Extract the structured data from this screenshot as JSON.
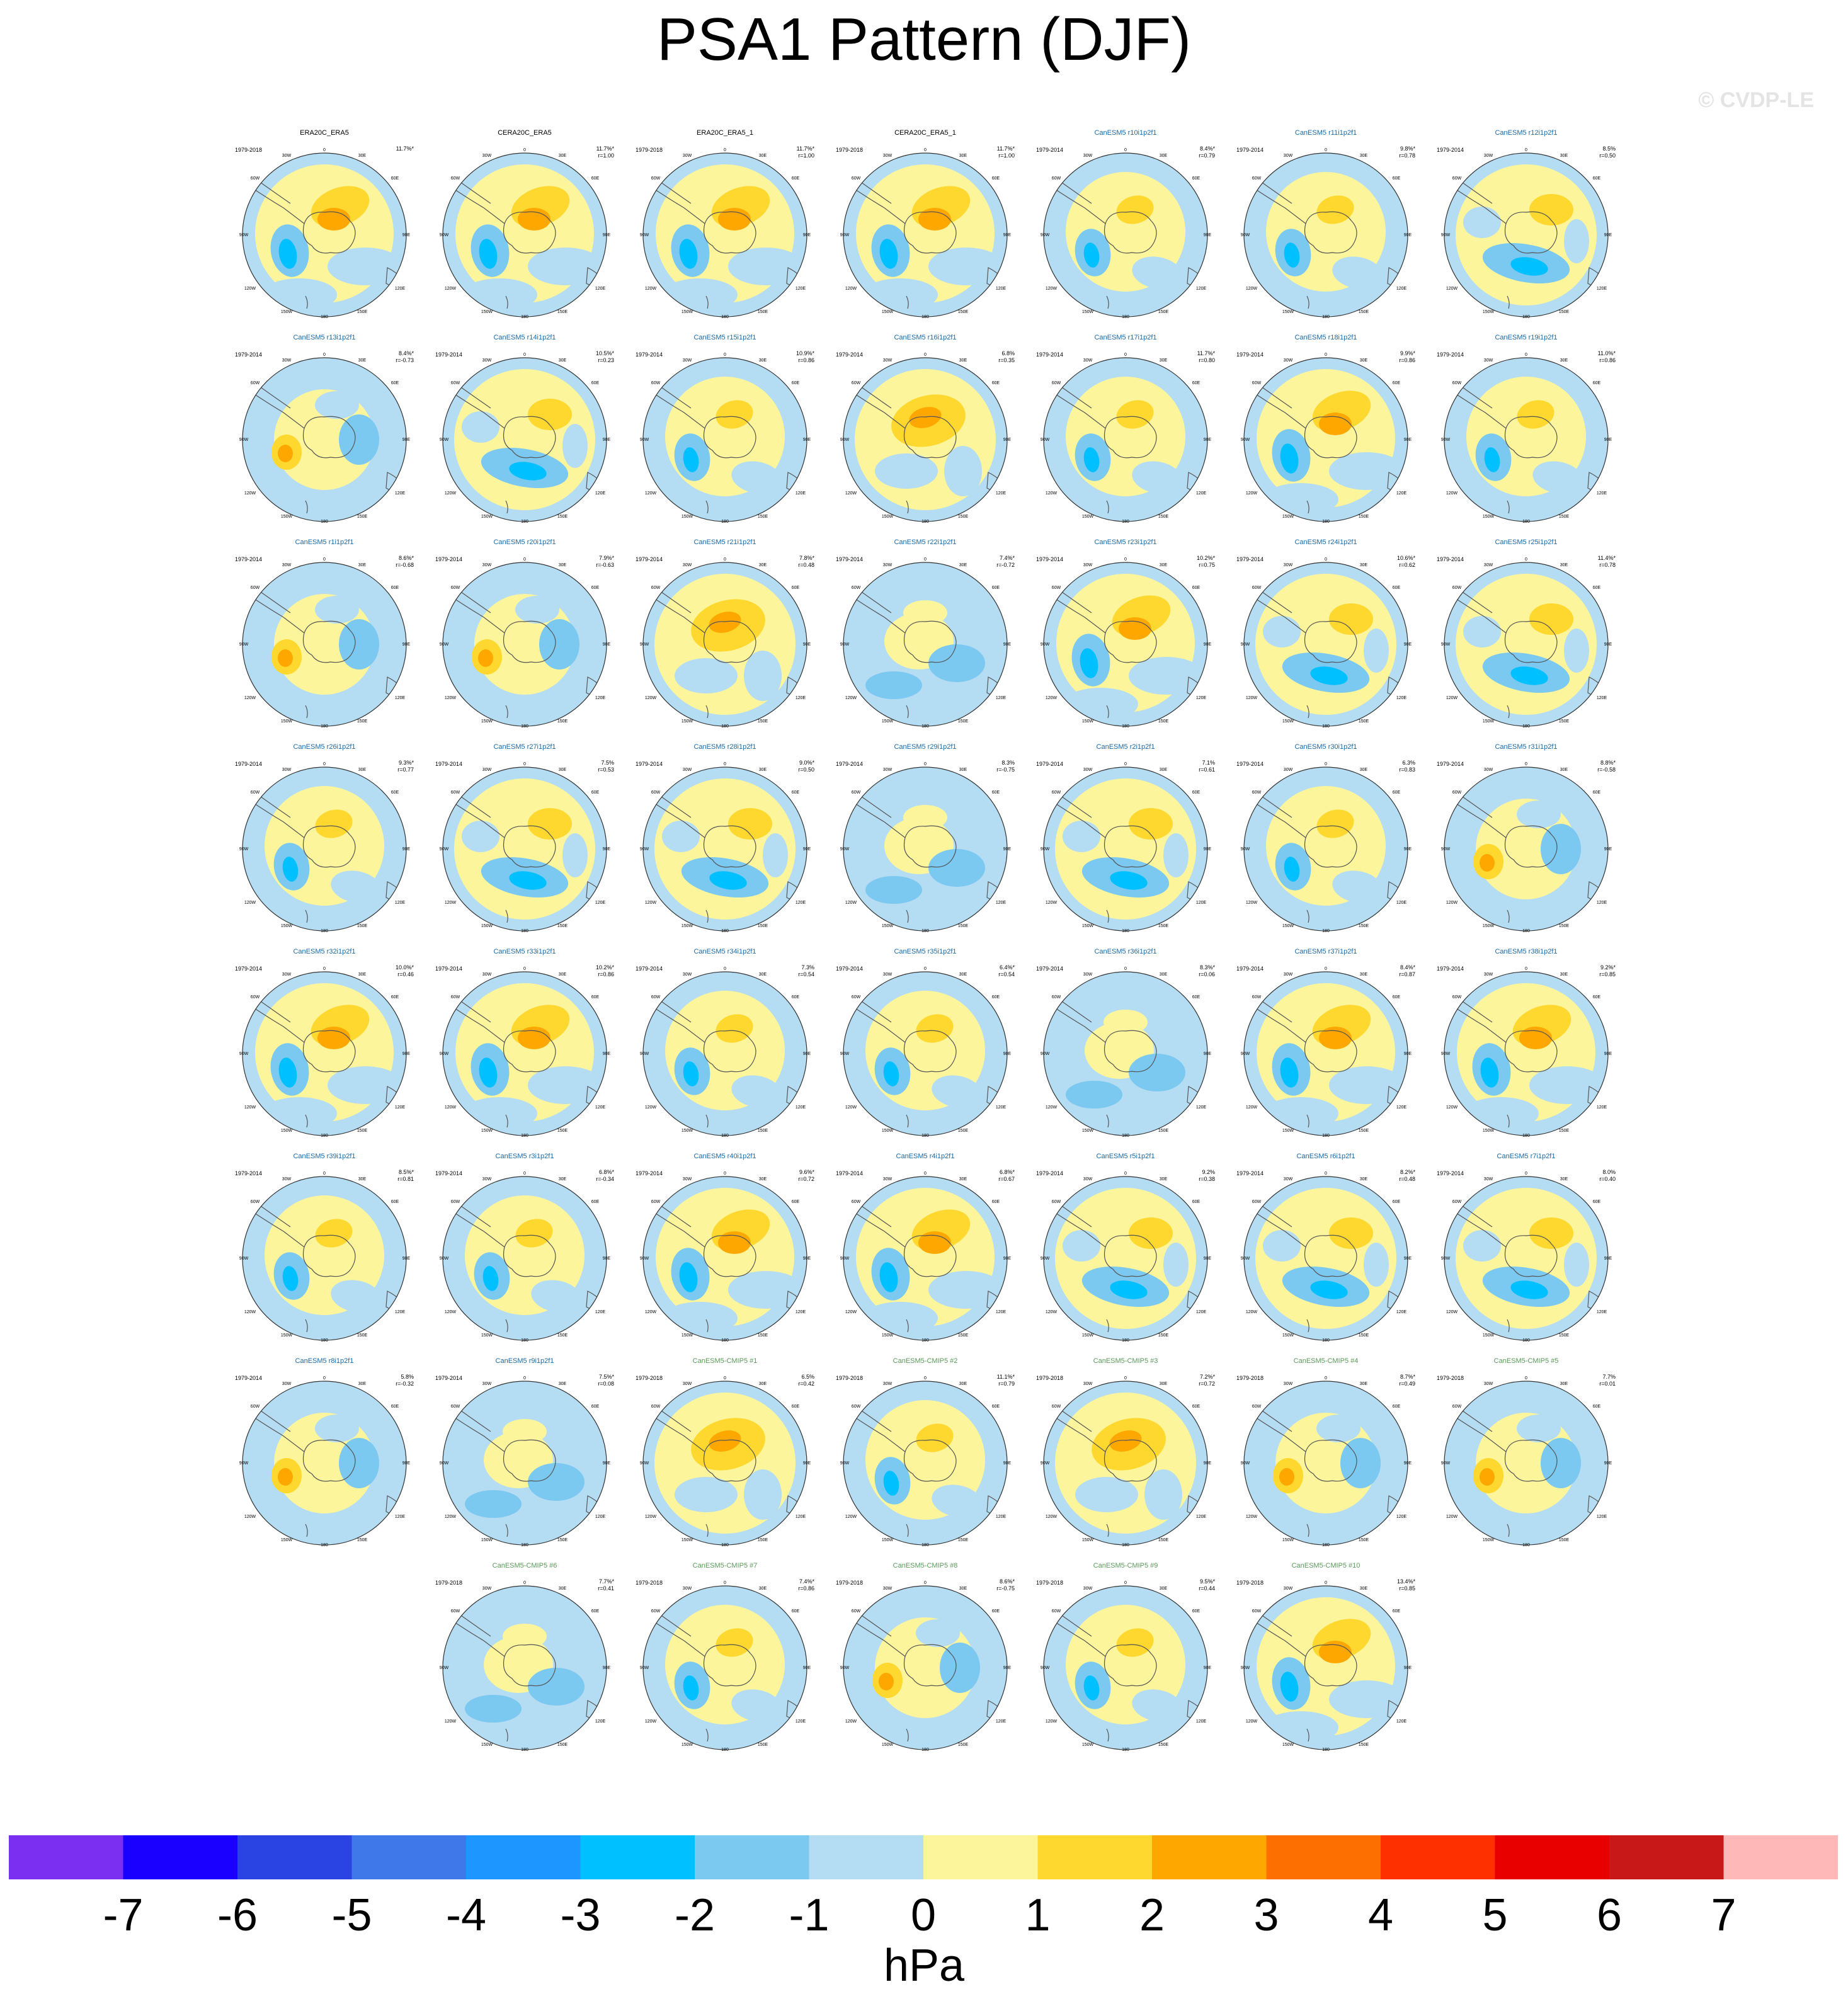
{
  "title": "PSA1 Pattern (DJF)",
  "watermark": "© CVDP-LE",
  "unit": "hPa",
  "colorbar": {
    "colors": [
      "#7b2ff0",
      "#1a00ff",
      "#2a44e4",
      "#3f78e8",
      "#1e96ff",
      "#00c0ff",
      "#7bc8f0",
      "#b4dcf2",
      "#fcf59c",
      "#fed82e",
      "#fea700",
      "#fd6f00",
      "#ff3000",
      "#e80000",
      "#c81818",
      "#ffb8b8"
    ],
    "ticks": [
      "-7",
      "-6",
      "-5",
      "-4",
      "-3",
      "-2",
      "-1",
      "0",
      "1",
      "2",
      "3",
      "4",
      "5",
      "6",
      "7"
    ]
  },
  "panels": [
    {
      "title": "ERA20C_ERA5",
      "title_color": "#000000",
      "years": "1979-2018",
      "stat1": "11.7%*",
      "stat2": "",
      "pattern": "obs"
    },
    {
      "title": "CERA20C_ERA5",
      "title_color": "#000000",
      "years": "",
      "stat1": "11.7%*",
      "stat2": "r=1.00",
      "pattern": "obs"
    },
    {
      "title": "ERA20C_ERA5_1",
      "title_color": "#000000",
      "years": "1979-2018",
      "stat1": "11.7%*",
      "stat2": "r=1.00",
      "pattern": "obs"
    },
    {
      "title": "CERA20C_ERA5_1",
      "title_color": "#000000",
      "years": "1979-2018",
      "stat1": "11.7%*",
      "stat2": "r=1.00",
      "pattern": "obs"
    },
    {
      "title": "CanESM5 r10i1p2f1",
      "title_color": "#1a6aa8",
      "years": "1979-2014",
      "stat1": "8.4%*",
      "stat2": "r=0.79",
      "pattern": "neg_w"
    },
    {
      "title": "CanESM5 r11i1p2f1",
      "title_color": "#1a6aa8",
      "years": "1979-2014",
      "stat1": "9.8%*",
      "stat2": "r=0.78",
      "pattern": "neg_w"
    },
    {
      "title": "CanESM5 r12i1p2f1",
      "title_color": "#1a6aa8",
      "years": "1979-2014",
      "stat1": "8.5%",
      "stat2": "r=0.50",
      "pattern": "neg_s"
    },
    {
      "title": "CanESM5 r13i1p2f1",
      "title_color": "#1a6aa8",
      "years": "1979-2014",
      "stat1": "8.4%*",
      "stat2": "r=-0.73",
      "pattern": "pos_w"
    },
    {
      "title": "CanESM5 r14i1p2f1",
      "title_color": "#1a6aa8",
      "years": "1979-2014",
      "stat1": "10.5%*",
      "stat2": "r=0.23",
      "pattern": "neg_s"
    },
    {
      "title": "CanESM5 r15i1p2f1",
      "title_color": "#1a6aa8",
      "years": "1979-2014",
      "stat1": "10.9%*",
      "stat2": "r=0.86",
      "pattern": "neg_w"
    },
    {
      "title": "CanESM5 r16i1p2f1",
      "title_color": "#1a6aa8",
      "years": "1979-2014",
      "stat1": "6.8%",
      "stat2": "r=0.35",
      "pattern": "pos_c"
    },
    {
      "title": "CanESM5 r17i1p2f1",
      "title_color": "#1a6aa8",
      "years": "1979-2014",
      "stat1": "11.7%*",
      "stat2": "r=0.80",
      "pattern": "neg_w"
    },
    {
      "title": "CanESM5 r18i1p2f1",
      "title_color": "#1a6aa8",
      "years": "1979-2014",
      "stat1": "9.9%*",
      "stat2": "r=0.86",
      "pattern": "obs"
    },
    {
      "title": "CanESM5 r19i1p2f1",
      "title_color": "#1a6aa8",
      "years": "1979-2014",
      "stat1": "11.0%*",
      "stat2": "r=0.86",
      "pattern": "neg_w"
    },
    {
      "title": "CanESM5 r1i1p2f1",
      "title_color": "#1a6aa8",
      "years": "1979-2014",
      "stat1": "8.6%*",
      "stat2": "r=-0.68",
      "pattern": "pos_w"
    },
    {
      "title": "CanESM5 r20i1p2f1",
      "title_color": "#1a6aa8",
      "years": "1979-2014",
      "stat1": "7.9%*",
      "stat2": "r=-0.63",
      "pattern": "pos_w"
    },
    {
      "title": "CanESM5 r21i1p2f1",
      "title_color": "#1a6aa8",
      "years": "1979-2014",
      "stat1": "7.8%*",
      "stat2": "r=0.48",
      "pattern": "pos_c"
    },
    {
      "title": "CanESM5 r22i1p2f1",
      "title_color": "#1a6aa8",
      "years": "1979-2014",
      "stat1": "7.4%*",
      "stat2": "r=-0.72",
      "pattern": "blue"
    },
    {
      "title": "CanESM5 r23i1p2f1",
      "title_color": "#1a6aa8",
      "years": "1979-2014",
      "stat1": "10.2%*",
      "stat2": "r=0.75",
      "pattern": "obs"
    },
    {
      "title": "CanESM5 r24i1p2f1",
      "title_color": "#1a6aa8",
      "years": "1979-2014",
      "stat1": "10.6%*",
      "stat2": "r=0.62",
      "pattern": "neg_s"
    },
    {
      "title": "CanESM5 r25i1p2f1",
      "title_color": "#1a6aa8",
      "years": "1979-2014",
      "stat1": "11.4%*",
      "stat2": "r=0.78",
      "pattern": "neg_s"
    },
    {
      "title": "CanESM5 r26i1p2f1",
      "title_color": "#1a6aa8",
      "years": "1979-2014",
      "stat1": "9.3%*",
      "stat2": "r=0.77",
      "pattern": "neg_w"
    },
    {
      "title": "CanESM5 r27i1p2f1",
      "title_color": "#1a6aa8",
      "years": "1979-2014",
      "stat1": "7.5%",
      "stat2": "r=0.53",
      "pattern": "neg_s"
    },
    {
      "title": "CanESM5 r28i1p2f1",
      "title_color": "#1a6aa8",
      "years": "1979-2014",
      "stat1": "9.0%*",
      "stat2": "r=0.50",
      "pattern": "neg_s"
    },
    {
      "title": "CanESM5 r29i1p2f1",
      "title_color": "#1a6aa8",
      "years": "1979-2014",
      "stat1": "8.3%",
      "stat2": "r=-0.75",
      "pattern": "blue"
    },
    {
      "title": "CanESM5 r2i1p2f1",
      "title_color": "#1a6aa8",
      "years": "1979-2014",
      "stat1": "7.1%",
      "stat2": "r=0.61",
      "pattern": "neg_s"
    },
    {
      "title": "CanESM5 r30i1p2f1",
      "title_color": "#1a6aa8",
      "years": "1979-2014",
      "stat1": "6.3%",
      "stat2": "r=0.83",
      "pattern": "neg_w"
    },
    {
      "title": "CanESM5 r31i1p2f1",
      "title_color": "#1a6aa8",
      "years": "1979-2014",
      "stat1": "8.8%*",
      "stat2": "r=-0.58",
      "pattern": "pos_w"
    },
    {
      "title": "CanESM5 r32i1p2f1",
      "title_color": "#1a6aa8",
      "years": "1979-2014",
      "stat1": "10.0%*",
      "stat2": "r=0.46",
      "pattern": "obs"
    },
    {
      "title": "CanESM5 r33i1p2f1",
      "title_color": "#1a6aa8",
      "years": "1979-2014",
      "stat1": "10.2%*",
      "stat2": "r=0.86",
      "pattern": "obs"
    },
    {
      "title": "CanESM5 r34i1p2f1",
      "title_color": "#1a6aa8",
      "years": "1979-2014",
      "stat1": "7.3%",
      "stat2": "r=0.54",
      "pattern": "neg_w"
    },
    {
      "title": "CanESM5 r35i1p2f1",
      "title_color": "#1a6aa8",
      "years": "1979-2014",
      "stat1": "6.4%*",
      "stat2": "r=0.54",
      "pattern": "neg_w"
    },
    {
      "title": "CanESM5 r36i1p2f1",
      "title_color": "#1a6aa8",
      "years": "1979-2014",
      "stat1": "8.3%*",
      "stat2": "r=0.06",
      "pattern": "blue"
    },
    {
      "title": "CanESM5 r37i1p2f1",
      "title_color": "#1a6aa8",
      "years": "1979-2014",
      "stat1": "8.4%*",
      "stat2": "r=0.87",
      "pattern": "obs"
    },
    {
      "title": "CanESM5 r38i1p2f1",
      "title_color": "#1a6aa8",
      "years": "1979-2014",
      "stat1": "9.2%*",
      "stat2": "r=0.85",
      "pattern": "obs"
    },
    {
      "title": "CanESM5 r39i1p2f1",
      "title_color": "#1a6aa8",
      "years": "1979-2014",
      "stat1": "8.5%*",
      "stat2": "r=0.81",
      "pattern": "neg_w"
    },
    {
      "title": "CanESM5 r3i1p2f1",
      "title_color": "#1a6aa8",
      "years": "1979-2014",
      "stat1": "6.8%*",
      "stat2": "r=-0.34",
      "pattern": "neg_w"
    },
    {
      "title": "CanESM5 r40i1p2f1",
      "title_color": "#1a6aa8",
      "years": "1979-2014",
      "stat1": "9.6%*",
      "stat2": "r=0.72",
      "pattern": "obs"
    },
    {
      "title": "CanESM5 r4i1p2f1",
      "title_color": "#1a6aa8",
      "years": "1979-2014",
      "stat1": "6.8%*",
      "stat2": "r=0.67",
      "pattern": "obs"
    },
    {
      "title": "CanESM5 r5i1p2f1",
      "title_color": "#1a6aa8",
      "years": "1979-2014",
      "stat1": "9.2%",
      "stat2": "r=0.38",
      "pattern": "neg_s"
    },
    {
      "title": "CanESM5 r6i1p2f1",
      "title_color": "#1a6aa8",
      "years": "1979-2014",
      "stat1": "8.2%*",
      "stat2": "r=0.48",
      "pattern": "neg_s"
    },
    {
      "title": "CanESM5 r7i1p2f1",
      "title_color": "#1a6aa8",
      "years": "1979-2014",
      "stat1": "8.0%",
      "stat2": "r=0.40",
      "pattern": "neg_s"
    },
    {
      "title": "CanESM5 r8i1p2f1",
      "title_color": "#1a6aa8",
      "years": "1979-2014",
      "stat1": "5.8%",
      "stat2": "r=-0.32",
      "pattern": "pos_w"
    },
    {
      "title": "CanESM5 r9i1p2f1",
      "title_color": "#1a6aa8",
      "years": "1979-2014",
      "stat1": "7.5%*",
      "stat2": "r=0.08",
      "pattern": "blue"
    },
    {
      "title": "CanESM5-CMIP5 #1",
      "title_color": "#5a9a5a",
      "years": "1979-2018",
      "stat1": "6.5%",
      "stat2": "r=0.42",
      "pattern": "pos_c"
    },
    {
      "title": "CanESM5-CMIP5 #2",
      "title_color": "#5a9a5a",
      "years": "1979-2018",
      "stat1": "11.1%*",
      "stat2": "r=0.79",
      "pattern": "neg_w"
    },
    {
      "title": "CanESM5-CMIP5 #3",
      "title_color": "#5a9a5a",
      "years": "1979-2018",
      "stat1": "7.2%*",
      "stat2": "r=0.72",
      "pattern": "pos_c"
    },
    {
      "title": "CanESM5-CMIP5 #4",
      "title_color": "#5a9a5a",
      "years": "1979-2018",
      "stat1": "8.7%*",
      "stat2": "r=0.49",
      "pattern": "pos_w"
    },
    {
      "title": "CanESM5-CMIP5 #5",
      "title_color": "#5a9a5a",
      "years": "1979-2018",
      "stat1": "7.7%",
      "stat2": "r=0.01",
      "pattern": "pos_w"
    },
    {
      "title": "CanESM5-CMIP5 #6",
      "title_color": "#5a9a5a",
      "years": "1979-2018",
      "stat1": "7.7%*",
      "stat2": "r=0.41",
      "pattern": "blue"
    },
    {
      "title": "CanESM5-CMIP5 #7",
      "title_color": "#5a9a5a",
      "years": "1979-2018",
      "stat1": "7.4%*",
      "stat2": "r=0.86",
      "pattern": "neg_w"
    },
    {
      "title": "CanESM5-CMIP5 #8",
      "title_color": "#5a9a5a",
      "years": "1979-2018",
      "stat1": "8.6%*",
      "stat2": "r=-0.75",
      "pattern": "pos_w"
    },
    {
      "title": "CanESM5-CMIP5 #9",
      "title_color": "#5a9a5a",
      "years": "1979-2018",
      "stat1": "9.5%*",
      "stat2": "r=0.44",
      "pattern": "neg_w"
    },
    {
      "title": "CanESM5-CMIP5 #10",
      "title_color": "#5a9a5a",
      "years": "1979-2018",
      "stat1": "13.4%*",
      "stat2": "r=0.85",
      "pattern": "obs"
    }
  ],
  "map_labels": [
    "0",
    "30W",
    "30E",
    "60W",
    "60E",
    "90W",
    "90E",
    "120W",
    "120E",
    "150W",
    "150E",
    "180"
  ]
}
